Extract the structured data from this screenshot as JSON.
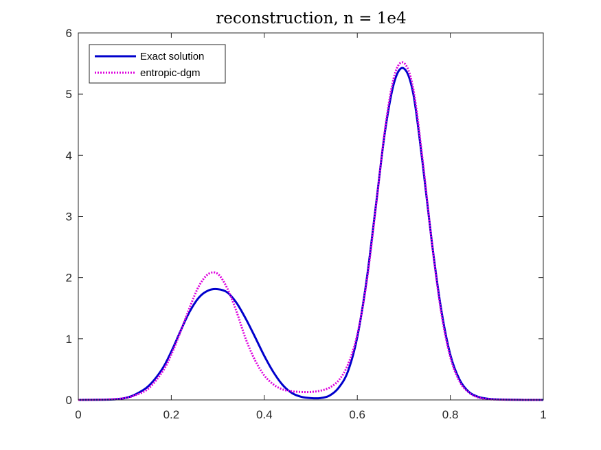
{
  "chart_data": {
    "type": "line",
    "title": "reconstruction, n = 1e4",
    "xlabel": "",
    "ylabel": "",
    "xlim": [
      0,
      1
    ],
    "ylim": [
      0,
      6
    ],
    "xticks": [
      0,
      0.2,
      0.4,
      0.6,
      0.8,
      1
    ],
    "xtick_labels": [
      "0",
      "0.2",
      "0.4",
      "0.6",
      "0.8",
      "1"
    ],
    "yticks": [
      0,
      1,
      2,
      3,
      4,
      5,
      6
    ],
    "ytick_labels": [
      "0",
      "1",
      "2",
      "3",
      "4",
      "5",
      "6"
    ],
    "grid": false,
    "legend_position": "top-left",
    "series": [
      {
        "name": "Exact solution",
        "color": "#0000CC",
        "style": "solid",
        "x": [
          0,
          0.05,
          0.08,
          0.1,
          0.12,
          0.15,
          0.18,
          0.2,
          0.22,
          0.24,
          0.26,
          0.28,
          0.3,
          0.32,
          0.34,
          0.36,
          0.38,
          0.4,
          0.42,
          0.44,
          0.46,
          0.48,
          0.5,
          0.52,
          0.54,
          0.56,
          0.58,
          0.6,
          0.62,
          0.64,
          0.66,
          0.68,
          0.7,
          0.72,
          0.74,
          0.76,
          0.78,
          0.8,
          0.82,
          0.84,
          0.86,
          0.88,
          0.9,
          0.95,
          1
        ],
        "y": [
          0,
          0.003,
          0.01,
          0.03,
          0.08,
          0.22,
          0.5,
          0.79,
          1.13,
          1.45,
          1.68,
          1.79,
          1.81,
          1.76,
          1.59,
          1.33,
          1.03,
          0.72,
          0.45,
          0.24,
          0.11,
          0.05,
          0.03,
          0.03,
          0.07,
          0.2,
          0.47,
          1.03,
          1.96,
          3.18,
          4.41,
          5.21,
          5.42,
          5.02,
          3.9,
          2.6,
          1.5,
          0.74,
          0.33,
          0.13,
          0.05,
          0.02,
          0.008,
          0.001,
          0
        ]
      },
      {
        "name": "entropic-dgm",
        "color": "#DD00DD",
        "style": "dotted",
        "x": [
          0,
          0.05,
          0.08,
          0.1,
          0.12,
          0.15,
          0.18,
          0.2,
          0.22,
          0.24,
          0.26,
          0.28,
          0.3,
          0.32,
          0.34,
          0.36,
          0.38,
          0.4,
          0.42,
          0.44,
          0.46,
          0.48,
          0.5,
          0.52,
          0.54,
          0.56,
          0.58,
          0.6,
          0.62,
          0.64,
          0.66,
          0.68,
          0.7,
          0.72,
          0.74,
          0.76,
          0.78,
          0.8,
          0.82,
          0.84,
          0.86,
          0.88,
          0.9,
          0.95,
          1
        ],
        "y": [
          0,
          0.004,
          0.015,
          0.03,
          0.07,
          0.18,
          0.45,
          0.74,
          1.12,
          1.52,
          1.87,
          2.06,
          2.06,
          1.83,
          1.45,
          1.0,
          0.65,
          0.4,
          0.25,
          0.17,
          0.14,
          0.13,
          0.13,
          0.15,
          0.2,
          0.32,
          0.58,
          1.07,
          1.92,
          3.15,
          4.45,
          5.31,
          5.51,
          5.1,
          3.96,
          2.6,
          1.45,
          0.7,
          0.3,
          0.12,
          0.04,
          0.015,
          0.005,
          0.001,
          0
        ]
      }
    ]
  }
}
